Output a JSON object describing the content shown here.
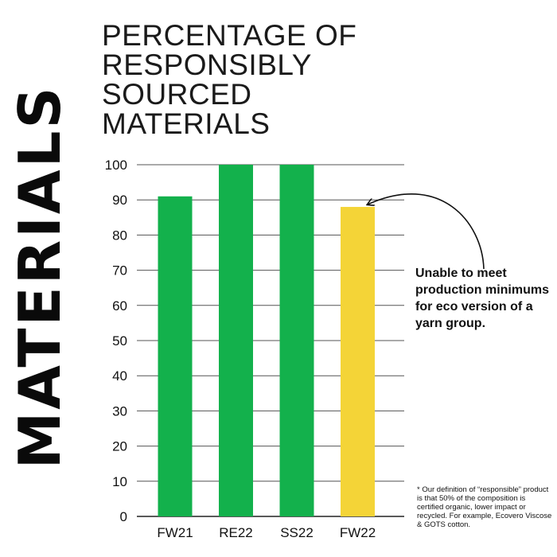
{
  "side_title": "MATERIALS",
  "title_lines": [
    "PERCENTAGE OF",
    "RESPONSIBLY",
    "SOURCED",
    "MATERIALS"
  ],
  "annotation": "Unable to meet production minimums for eco version of a yarn group.",
  "footnote": "* Our definition of “responsible” product is that 50% of the composition is certified organic, lower impact or recycled. For example, Ecovero Viscose & GOTS cotton.",
  "colors": {
    "bar_default": "#13b14c",
    "bar_highlight": "#f4d437",
    "gridline": "#555555",
    "text": "#111111"
  },
  "chart_data": {
    "type": "bar",
    "title": "PERCENTAGE OF RESPONSIBLY SOURCED MATERIALS",
    "categories": [
      "FW21",
      "RE22",
      "SS22",
      "FW22"
    ],
    "values": [
      91,
      100,
      100,
      88
    ],
    "bar_colors": [
      "#13b14c",
      "#13b14c",
      "#13b14c",
      "#f4d437"
    ],
    "xlabel": "",
    "ylabel": "",
    "ylim": [
      0,
      100
    ],
    "yticks": [
      0,
      10,
      20,
      30,
      40,
      50,
      60,
      70,
      80,
      90,
      100
    ],
    "grid": true,
    "legend": "none"
  }
}
